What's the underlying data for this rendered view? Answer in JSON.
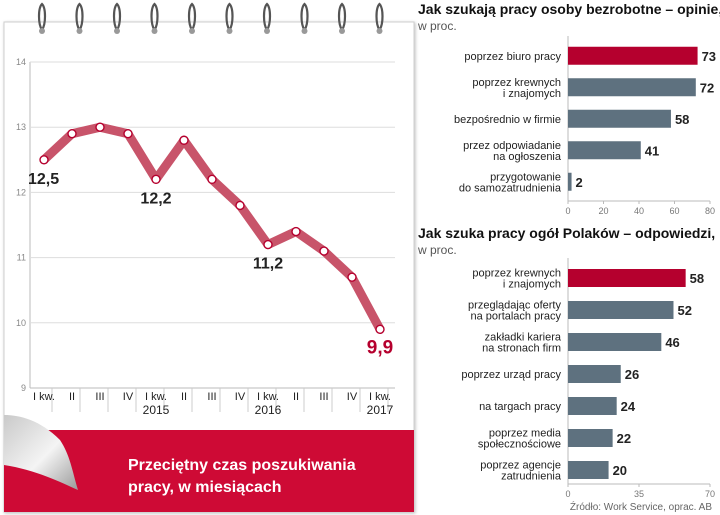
{
  "chart_data": [
    {
      "type": "line",
      "title": "Przeciętny czas poszukiwania pracy, w miesiącach",
      "title_lines": [
        "Przeciętny czas poszukiwania",
        "pracy, w miesiącach"
      ],
      "x": [
        "I kw.",
        "II",
        "III",
        "IV",
        "I kw.",
        "II",
        "III",
        "IV",
        "I kw.",
        "II",
        "III",
        "IV",
        "I kw."
      ],
      "years": [
        {
          "label": "",
          "index": 0
        },
        {
          "label": "2015",
          "index": 4
        },
        {
          "label": "2016",
          "index": 8
        },
        {
          "label": "2017",
          "index": 12
        }
      ],
      "values": [
        12.5,
        12.9,
        13.0,
        12.9,
        12.2,
        12.8,
        12.2,
        11.8,
        11.2,
        11.4,
        11.1,
        10.7,
        9.9
      ],
      "labels": [
        {
          "index": 0,
          "text": "12,5",
          "pos": "below-left",
          "highlight": false
        },
        {
          "index": 4,
          "text": "12,2",
          "pos": "below",
          "highlight": false
        },
        {
          "index": 8,
          "text": "11,2",
          "pos": "below",
          "highlight": false
        },
        {
          "index": 12,
          "text": "9,9",
          "pos": "below",
          "highlight": true
        }
      ],
      "ylim": [
        9,
        14
      ],
      "yticks": [
        9,
        10,
        11,
        12,
        13,
        14
      ],
      "grid": true,
      "xlabel": "",
      "ylabel": ""
    },
    {
      "type": "bar",
      "orientation": "horizontal",
      "title": "Jak szukają pracy osoby bezrobotne – opinie,",
      "subtitle": "w proc.",
      "categories": [
        [
          "poprzez biuro pracy"
        ],
        [
          "poprzez krewnych",
          "i znajomych"
        ],
        [
          "bezpośrednio w firmie"
        ],
        [
          "przez odpowiadanie",
          "na ogłoszenia"
        ],
        [
          "przygotowanie",
          "do samozatrudnienia"
        ]
      ],
      "values": [
        73,
        72,
        58,
        41,
        2
      ],
      "highlight_index": 0,
      "xlim": [
        0,
        80
      ],
      "xticks": [
        0,
        20,
        40,
        60,
        80
      ]
    },
    {
      "type": "bar",
      "orientation": "horizontal",
      "title": "Jak szuka pracy ogół Polaków – odpowiedzi,",
      "subtitle": "w proc.",
      "categories": [
        [
          "poprzez krewnych",
          "i znajomych"
        ],
        [
          "przeglądając oferty",
          "na portalach pracy"
        ],
        [
          "zakładki kariera",
          "na stronach firm"
        ],
        [
          "poprzez urząd pracy"
        ],
        [
          "na targach pracy"
        ],
        [
          "poprzez media",
          "społecznościowe"
        ],
        [
          "poprzez agencje",
          "zatrudnienia"
        ]
      ],
      "values": [
        58,
        52,
        46,
        26,
        24,
        22,
        20
      ],
      "highlight_index": 0,
      "xlim": [
        0,
        70
      ],
      "xticks": [
        0,
        35,
        70
      ]
    }
  ],
  "source": "Źródło: Work Service, oprac. AB",
  "colors": {
    "accent": "#b5002e",
    "line": "#c8546a",
    "bar": "#5e717f",
    "grid": "#dddddd"
  }
}
